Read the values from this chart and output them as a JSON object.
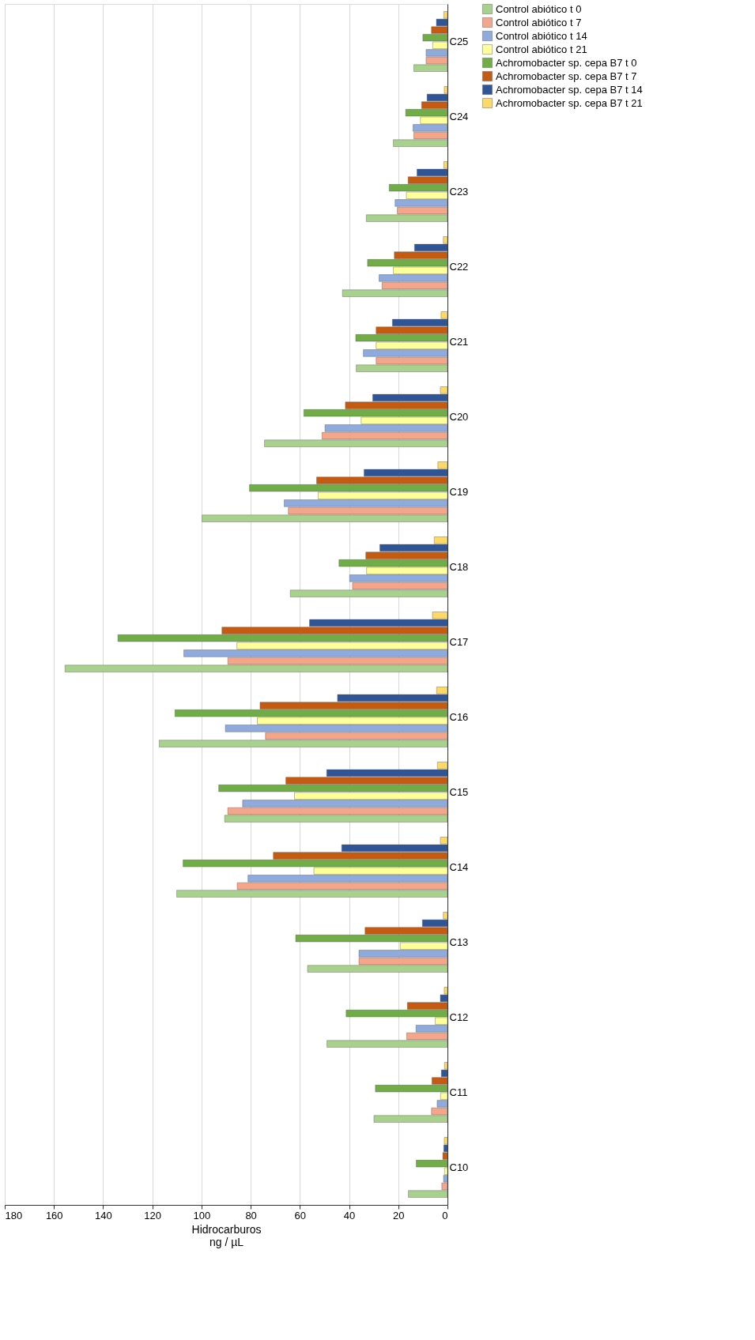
{
  "chart_data": {
    "type": "bar",
    "orientation": "horizontal",
    "xlabel": "Hidrocarburos\nng / µL",
    "categories": [
      "C25",
      "C24",
      "C23",
      "C22",
      "C21",
      "C20",
      "C19",
      "C18",
      "C17",
      "C16",
      "C15",
      "C14",
      "C13",
      "C12",
      "C11",
      "C10"
    ],
    "xlim": [
      180,
      0
    ],
    "xticks": [
      180,
      160,
      140,
      120,
      100,
      80,
      60,
      40,
      20,
      0
    ],
    "grid": "x",
    "legend": "right",
    "series": [
      {
        "name": "Control abiótico t 0",
        "color": "#a9d18e",
        "values": [
          13.7,
          22,
          33,
          42.7,
          37.1,
          74.4,
          99.8,
          63.9,
          155.5,
          117.2,
          90.6,
          110.1,
          56.9,
          49,
          29.9,
          15.9
        ]
      },
      {
        "name": "Control abiótico t 7",
        "color": "#f4a58a",
        "values": [
          8.7,
          13.7,
          20.4,
          26.6,
          29,
          51,
          64.7,
          38.6,
          89.3,
          74,
          89.3,
          85.5,
          36,
          16.6,
          6.5,
          2.3
        ]
      },
      {
        "name": "Control abiótico t 14",
        "color": "#8faadc",
        "values": [
          8.7,
          14,
          21.3,
          27.8,
          34.2,
          49.8,
          66.4,
          39.8,
          107.2,
          90.3,
          83.3,
          81.1,
          36,
          12.8,
          4.2,
          1.6
        ]
      },
      {
        "name": "Control abiótico t 21",
        "color": "#ffff99",
        "values": [
          6,
          11,
          16.7,
          22,
          29,
          35.1,
          52.6,
          32.9,
          85.6,
          77.3,
          62.2,
          54.3,
          19.2,
          5,
          2.8,
          1.2
        ]
      },
      {
        "name": "Achromobacter sp. cepa B7 t 0",
        "color": "#70ad47",
        "values": [
          10,
          17,
          23.7,
          32.5,
          37.3,
          58.4,
          80.5,
          44.1,
          134,
          110.8,
          93,
          107.5,
          61.7,
          41.2,
          29.3,
          12.7
        ]
      },
      {
        "name": "Achromobacter sp. cepa B7 t 7",
        "color": "#c55a11",
        "values": [
          6.5,
          10.5,
          16,
          21.6,
          29,
          41.5,
          53.2,
          33.2,
          91.7,
          76.2,
          65.7,
          70.8,
          33.5,
          16.3,
          6.3,
          1.9
        ]
      },
      {
        "name": "Achromobacter sp. cepa B7 t 14",
        "color": "#2f5597",
        "values": [
          4.5,
          8.3,
          12.4,
          13.4,
          22.4,
          30.4,
          33.9,
          27.5,
          56.1,
          44.7,
          49.1,
          43,
          10.2,
          2.9,
          2.5,
          1.5
        ]
      },
      {
        "name": "Achromobacter sp. cepa B7 t 21",
        "color": "#ffd966",
        "values": [
          1.5,
          1.3,
          1.5,
          1.7,
          2.6,
          2.9,
          3.9,
          5.4,
          6.1,
          4.4,
          4.1,
          2.9,
          1.7,
          1.3,
          1.2,
          1.3
        ]
      }
    ]
  }
}
